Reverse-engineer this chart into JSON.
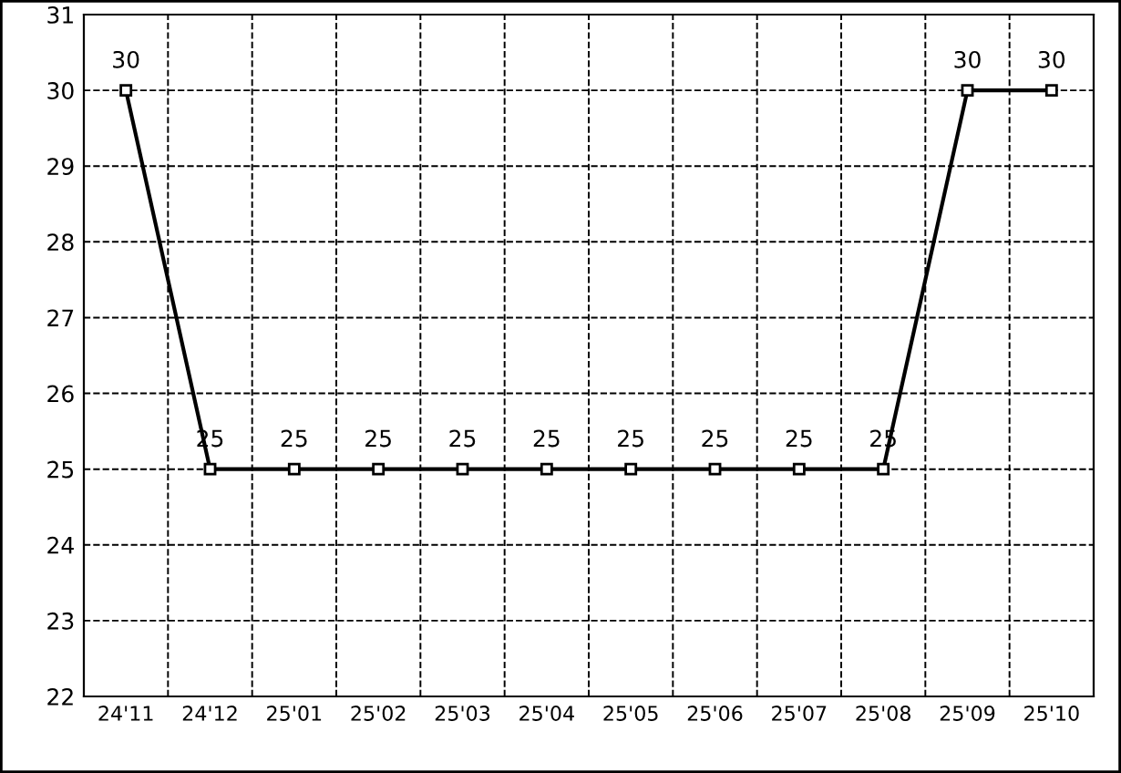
{
  "chart_data": {
    "type": "line",
    "categories": [
      "24'11",
      "24'12",
      "25'01",
      "25'02",
      "25'03",
      "25'04",
      "25'05",
      "25'06",
      "25'07",
      "25'08",
      "25'09",
      "25'10"
    ],
    "values": [
      30,
      25,
      25,
      25,
      25,
      25,
      25,
      25,
      25,
      25,
      30,
      30
    ],
    "color": "#000000",
    "marker": "square",
    "line_style": "solid",
    "data_labels": true,
    "grid": true,
    "ylim": [
      22,
      31
    ],
    "yticks": [
      22,
      23,
      24,
      25,
      26,
      27,
      28,
      29,
      30,
      31
    ]
  }
}
